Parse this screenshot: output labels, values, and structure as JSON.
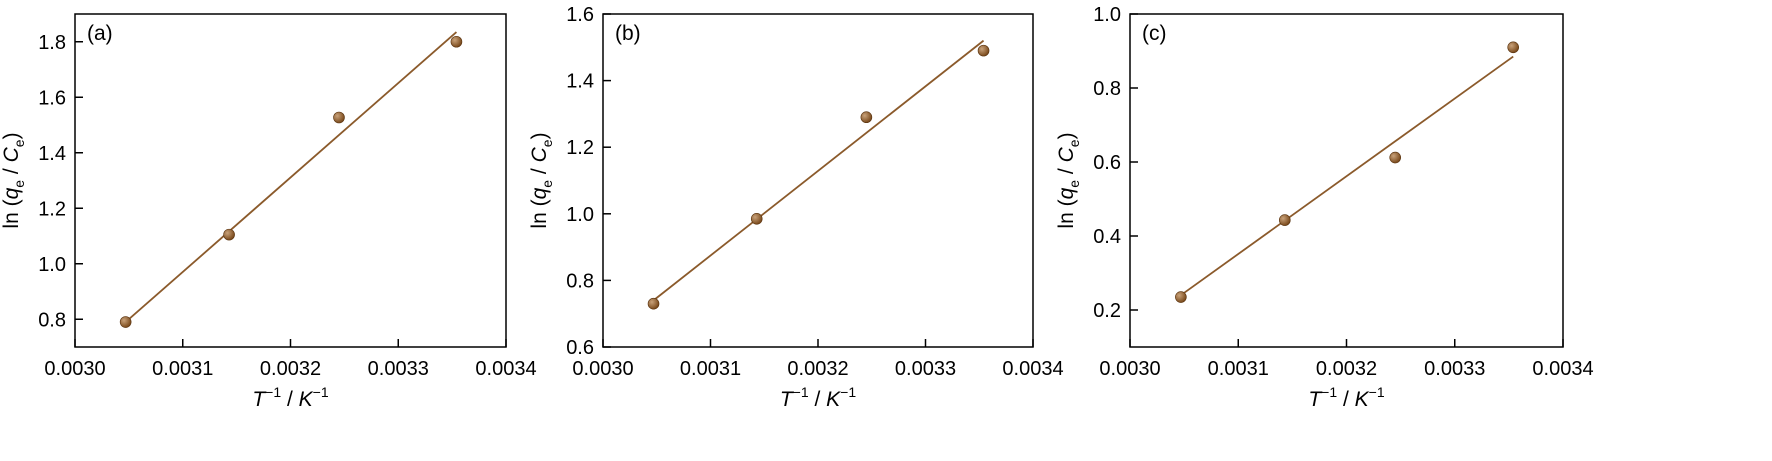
{
  "chart_data": [
    {
      "type": "scatter",
      "panel_label": "(a)",
      "xlim": [
        0.003,
        0.0034
      ],
      "ylim": [
        0.7,
        1.9
      ],
      "x_ticks": [
        "0.0030",
        "0.0031",
        "0.0032",
        "0.0033",
        "0.0034"
      ],
      "y_ticks": [
        "0.8",
        "1.0",
        "1.2",
        "1.4",
        "1.6",
        "1.8"
      ],
      "y_tick_values": [
        0.8,
        1.0,
        1.2,
        1.4,
        1.6,
        1.8
      ],
      "points": [
        {
          "x": 0.003047,
          "y": 0.79
        },
        {
          "x": 0.003143,
          "y": 1.105
        },
        {
          "x": 0.003245,
          "y": 1.527
        },
        {
          "x": 0.003354,
          "y": 1.8
        }
      ],
      "fit_line": {
        "x": [
          0.003047,
          0.003354
        ],
        "y": [
          0.79,
          1.835
        ]
      }
    },
    {
      "type": "scatter",
      "panel_label": "(b)",
      "xlim": [
        0.003,
        0.0034
      ],
      "ylim": [
        0.6,
        1.6
      ],
      "x_ticks": [
        "0.0030",
        "0.0031",
        "0.0032",
        "0.0033",
        "0.0034"
      ],
      "y_ticks": [
        "0.6",
        "0.8",
        "1.0",
        "1.2",
        "1.4",
        "1.6"
      ],
      "y_tick_values": [
        0.6,
        0.8,
        1.0,
        1.2,
        1.4,
        1.6
      ],
      "points": [
        {
          "x": 0.003047,
          "y": 0.73
        },
        {
          "x": 0.003143,
          "y": 0.985
        },
        {
          "x": 0.003245,
          "y": 1.29
        },
        {
          "x": 0.003354,
          "y": 1.49
        }
      ],
      "fit_line": {
        "x": [
          0.003047,
          0.003354
        ],
        "y": [
          0.74,
          1.52
        ]
      }
    },
    {
      "type": "scatter",
      "panel_label": "(c)",
      "xlim": [
        0.003,
        0.0034
      ],
      "ylim": [
        0.1,
        1.0
      ],
      "x_ticks": [
        "0.0030",
        "0.0031",
        "0.0032",
        "0.0033",
        "0.0034"
      ],
      "y_ticks": [
        "0.2",
        "0.4",
        "0.6",
        "0.8",
        "1.0"
      ],
      "y_tick_values": [
        0.2,
        0.4,
        0.6,
        0.8,
        1.0
      ],
      "points": [
        {
          "x": 0.003047,
          "y": 0.235
        },
        {
          "x": 0.003143,
          "y": 0.443
        },
        {
          "x": 0.003245,
          "y": 0.612
        },
        {
          "x": 0.003354,
          "y": 0.91
        }
      ],
      "fit_line": {
        "x": [
          0.003047,
          0.003354
        ],
        "y": [
          0.24,
          0.885
        ]
      }
    }
  ],
  "axis_labels": {
    "y_prefix": "ln (",
    "y_q": "q",
    "y_q_sub": "e",
    "y_sep": " / ",
    "y_c": "C",
    "y_c_sub": "e",
    "y_suffix": ")",
    "x_t": "T",
    "x_t_sup": "−1",
    "x_sep": " / ",
    "x_k": "K",
    "x_k_sup": "−1"
  },
  "colors": {
    "marker": "#7a4a1c",
    "marker_highlight": "#c9a27a",
    "fit_line": "#8b5a2b"
  }
}
